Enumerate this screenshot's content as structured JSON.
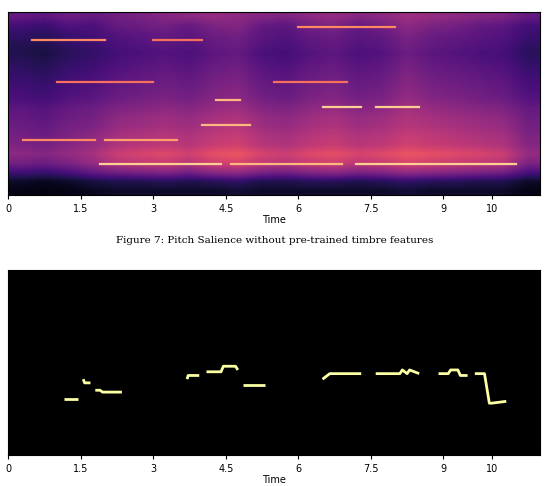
{
  "caption": "Figure 7: Pitch Salience without pre-trained timbre features",
  "chart_data": [
    {
      "type": "heatmap",
      "xlabel": "Time",
      "xlim": [
        0,
        11
      ],
      "ylim": [
        0,
        100
      ],
      "xticks": [
        0,
        1.5,
        3,
        4.5,
        6,
        7.5,
        9,
        10
      ],
      "tick_labels": "x",
      "cell_range": [
        0,
        1
      ],
      "cells": [
        [
          0.3,
          0.28,
          0.32,
          0.3,
          0.33,
          0.35,
          0.38,
          0.4,
          0.42,
          0.4,
          0.38,
          0.36,
          0.4,
          0.42,
          0.38,
          0.4,
          0.44,
          0.42,
          0.4,
          0.38,
          0.36,
          0.3
        ],
        [
          0.22,
          0.2,
          0.25,
          0.24,
          0.3,
          0.32,
          0.34,
          0.3,
          0.36,
          0.38,
          0.3,
          0.28,
          0.34,
          0.36,
          0.3,
          0.34,
          0.4,
          0.36,
          0.34,
          0.3,
          0.28,
          0.22
        ],
        [
          0.18,
          0.16,
          0.2,
          0.22,
          0.26,
          0.28,
          0.3,
          0.28,
          0.32,
          0.34,
          0.28,
          0.26,
          0.3,
          0.32,
          0.28,
          0.3,
          0.36,
          0.32,
          0.3,
          0.28,
          0.26,
          0.2
        ],
        [
          0.15,
          0.14,
          0.18,
          0.2,
          0.24,
          0.26,
          0.28,
          0.26,
          0.3,
          0.32,
          0.26,
          0.24,
          0.28,
          0.3,
          0.26,
          0.28,
          0.34,
          0.3,
          0.28,
          0.26,
          0.24,
          0.18
        ],
        [
          0.14,
          0.12,
          0.16,
          0.18,
          0.22,
          0.24,
          0.26,
          0.24,
          0.28,
          0.3,
          0.24,
          0.22,
          0.26,
          0.28,
          0.24,
          0.26,
          0.32,
          0.28,
          0.26,
          0.24,
          0.22,
          0.16
        ],
        [
          0.16,
          0.14,
          0.18,
          0.2,
          0.24,
          0.26,
          0.28,
          0.26,
          0.3,
          0.32,
          0.26,
          0.24,
          0.28,
          0.3,
          0.26,
          0.28,
          0.34,
          0.3,
          0.28,
          0.26,
          0.24,
          0.18
        ],
        [
          0.18,
          0.16,
          0.2,
          0.22,
          0.26,
          0.28,
          0.3,
          0.28,
          0.32,
          0.34,
          0.28,
          0.26,
          0.3,
          0.32,
          0.28,
          0.3,
          0.36,
          0.32,
          0.3,
          0.28,
          0.26,
          0.2
        ],
        [
          0.2,
          0.18,
          0.22,
          0.24,
          0.28,
          0.3,
          0.32,
          0.3,
          0.34,
          0.36,
          0.3,
          0.28,
          0.32,
          0.34,
          0.3,
          0.32,
          0.38,
          0.34,
          0.32,
          0.3,
          0.28,
          0.22
        ],
        [
          0.22,
          0.2,
          0.24,
          0.26,
          0.3,
          0.32,
          0.34,
          0.32,
          0.36,
          0.38,
          0.32,
          0.3,
          0.34,
          0.36,
          0.32,
          0.34,
          0.4,
          0.36,
          0.34,
          0.32,
          0.3,
          0.24
        ],
        [
          0.24,
          0.22,
          0.26,
          0.28,
          0.32,
          0.34,
          0.36,
          0.34,
          0.38,
          0.4,
          0.34,
          0.32,
          0.36,
          0.38,
          0.34,
          0.36,
          0.42,
          0.38,
          0.36,
          0.34,
          0.32,
          0.26
        ],
        [
          0.28,
          0.26,
          0.3,
          0.32,
          0.36,
          0.38,
          0.4,
          0.38,
          0.42,
          0.44,
          0.38,
          0.36,
          0.4,
          0.42,
          0.38,
          0.4,
          0.46,
          0.42,
          0.4,
          0.38,
          0.36,
          0.3
        ],
        [
          0.3,
          0.28,
          0.32,
          0.34,
          0.4,
          0.42,
          0.44,
          0.42,
          0.46,
          0.48,
          0.42,
          0.4,
          0.44,
          0.46,
          0.42,
          0.44,
          0.48,
          0.46,
          0.44,
          0.42,
          0.4,
          0.32
        ],
        [
          0.32,
          0.3,
          0.34,
          0.36,
          0.42,
          0.44,
          0.46,
          0.44,
          0.48,
          0.5,
          0.44,
          0.42,
          0.46,
          0.48,
          0.44,
          0.46,
          0.5,
          0.48,
          0.46,
          0.44,
          0.42,
          0.34
        ],
        [
          0.34,
          0.32,
          0.36,
          0.4,
          0.46,
          0.48,
          0.5,
          0.48,
          0.52,
          0.54,
          0.48,
          0.46,
          0.5,
          0.52,
          0.48,
          0.5,
          0.54,
          0.52,
          0.5,
          0.48,
          0.46,
          0.36
        ],
        [
          0.36,
          0.34,
          0.38,
          0.42,
          0.48,
          0.5,
          0.52,
          0.5,
          0.54,
          0.56,
          0.5,
          0.48,
          0.52,
          0.54,
          0.5,
          0.52,
          0.56,
          0.54,
          0.52,
          0.5,
          0.48,
          0.38
        ],
        [
          0.4,
          0.38,
          0.42,
          0.46,
          0.55,
          0.58,
          0.6,
          0.56,
          0.62,
          0.64,
          0.58,
          0.55,
          0.6,
          0.62,
          0.58,
          0.6,
          0.64,
          0.62,
          0.6,
          0.58,
          0.55,
          0.42
        ],
        [
          0.34,
          0.32,
          0.36,
          0.42,
          0.5,
          0.52,
          0.54,
          0.5,
          0.56,
          0.58,
          0.52,
          0.5,
          0.54,
          0.56,
          0.52,
          0.54,
          0.58,
          0.56,
          0.54,
          0.52,
          0.5,
          0.36
        ],
        [
          0.22,
          0.2,
          0.24,
          0.3,
          0.34,
          0.36,
          0.38,
          0.34,
          0.4,
          0.42,
          0.36,
          0.34,
          0.38,
          0.4,
          0.36,
          0.38,
          0.42,
          0.4,
          0.38,
          0.36,
          0.34,
          0.24
        ],
        [
          0.08,
          0.06,
          0.08,
          0.12,
          0.14,
          0.14,
          0.16,
          0.14,
          0.16,
          0.18,
          0.14,
          0.14,
          0.16,
          0.16,
          0.14,
          0.16,
          0.18,
          0.16,
          0.16,
          0.14,
          0.14,
          0.08
        ],
        [
          0.04,
          0.03,
          0.04,
          0.06,
          0.08,
          0.08,
          0.08,
          0.08,
          0.08,
          0.1,
          0.08,
          0.08,
          0.08,
          0.08,
          0.08,
          0.08,
          0.1,
          0.08,
          0.08,
          0.08,
          0.08,
          0.04
        ]
      ],
      "contours": [
        {
          "x": [
            1.9,
            4.4
          ],
          "y": 17,
          "level": 0.9
        },
        {
          "x": [
            4.6,
            6.9
          ],
          "y": 17,
          "level": 0.85
        },
        {
          "x": [
            7.2,
            10.5
          ],
          "y": 17,
          "level": 0.9
        },
        {
          "x": [
            0.3,
            1.8
          ],
          "y": 30,
          "level": 0.75
        },
        {
          "x": [
            2.0,
            3.5
          ],
          "y": 30,
          "level": 0.8
        },
        {
          "x": [
            4.0,
            5.0
          ],
          "y": 38,
          "level": 0.85
        },
        {
          "x": [
            6.5,
            7.3
          ],
          "y": 48,
          "level": 0.9
        },
        {
          "x": [
            7.6,
            8.5
          ],
          "y": 48,
          "level": 0.9
        },
        {
          "x": [
            4.3,
            4.8
          ],
          "y": 52,
          "level": 0.85
        },
        {
          "x": [
            1.0,
            3.0
          ],
          "y": 62,
          "level": 0.7
        },
        {
          "x": [
            5.5,
            7.0
          ],
          "y": 62,
          "level": 0.7
        },
        {
          "x": [
            0.5,
            2.0
          ],
          "y": 85,
          "level": 0.75
        },
        {
          "x": [
            3.0,
            4.0
          ],
          "y": 85,
          "level": 0.7
        },
        {
          "x": [
            6.0,
            8.0
          ],
          "y": 92,
          "level": 0.75
        }
      ]
    },
    {
      "type": "line",
      "xlabel": "Time",
      "color": "#fcffa4",
      "xlim": [
        0,
        11
      ],
      "ylim": [
        0,
        100
      ],
      "xticks": [
        0,
        1.5,
        3,
        4.5,
        6,
        7.5,
        9,
        10
      ],
      "tick_labels": "x",
      "segments": [
        {
          "x": [
            1.15,
            1.45
          ],
          "y": [
            30,
            30
          ]
        },
        {
          "x": [
            1.55,
            1.58,
            1.7
          ],
          "y": [
            41,
            39,
            39
          ]
        },
        {
          "x": [
            1.8,
            1.9,
            1.95,
            2.35
          ],
          "y": [
            35,
            35,
            34,
            34
          ]
        },
        {
          "x": [
            3.7,
            3.72,
            3.95
          ],
          "y": [
            41,
            43,
            43
          ]
        },
        {
          "x": [
            4.1,
            4.4,
            4.45,
            4.7,
            4.75
          ],
          "y": [
            45,
            45,
            48,
            48,
            46
          ]
        },
        {
          "x": [
            4.85,
            5.3
          ],
          "y": [
            38,
            38
          ]
        },
        {
          "x": [
            6.5,
            6.65,
            7.3
          ],
          "y": [
            41,
            44,
            44
          ]
        },
        {
          "x": [
            7.6,
            8.1,
            8.15,
            8.25,
            8.3,
            8.5
          ],
          "y": [
            44,
            44,
            46,
            44,
            46,
            44
          ]
        },
        {
          "x": [
            8.9,
            9.1,
            9.15,
            9.3,
            9.35,
            9.5
          ],
          "y": [
            44,
            44,
            46,
            46,
            43,
            43
          ]
        },
        {
          "x": [
            9.65,
            9.85,
            9.95,
            10.0,
            10.3
          ],
          "y": [
            44,
            44,
            28,
            28,
            29
          ]
        }
      ]
    }
  ]
}
